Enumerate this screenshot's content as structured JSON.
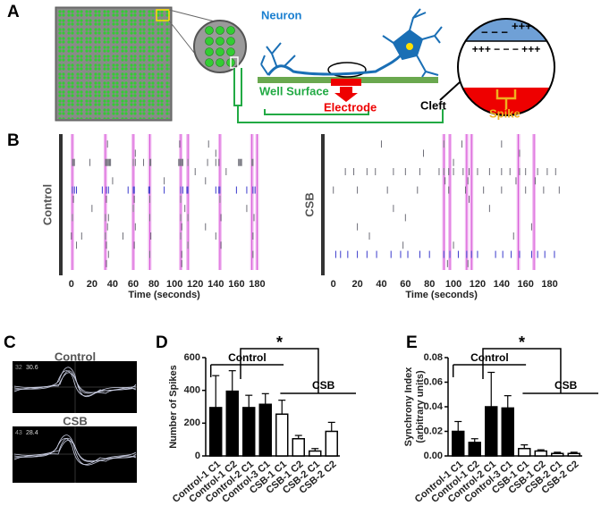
{
  "panel_labels": [
    "A",
    "B",
    "C",
    "D",
    "E"
  ],
  "diagram": {
    "neuron": "Neuron",
    "well_surface": "Well Surface",
    "electrode": "Electrode",
    "cleft": "Cleft",
    "spike": "Spike",
    "charge_top_plus": "+++",
    "charge_top_minus": "− − −",
    "charge_middle": "+++ − − − +++"
  },
  "waveforms": [
    {
      "label": "Control",
      "channel": "32",
      "reading": "30.6"
    },
    {
      "label": "CSB",
      "channel": "43",
      "reading": "28.4"
    }
  ],
  "chart_data": [
    {
      "type": "raster",
      "ylabel": "Control",
      "xlabel": "Time (seconds)",
      "xlim": [
        -5,
        190
      ],
      "xticks": [
        0,
        20,
        40,
        60,
        80,
        100,
        120,
        140,
        160,
        180
      ],
      "burst_color": "#e88ae8",
      "bursts": [
        1,
        33,
        60,
        76,
        106,
        113,
        144,
        175,
        180
      ],
      "rows": [
        {
          "color": "#6e6e78",
          "values": [
            35,
            105,
            133
          ]
        },
        {
          "color": "#6e6e78",
          "values": [
            62,
            140
          ]
        },
        {
          "color": "#6e6e78",
          "values": [
            1,
            2,
            3,
            18,
            33,
            34,
            35,
            36,
            37,
            38,
            60,
            62,
            70,
            76,
            77,
            104,
            105,
            106,
            107,
            108,
            113,
            132,
            140,
            143,
            162,
            163,
            164,
            165,
            175,
            176
          ]
        },
        {
          "color": "#6e6e78",
          "values": [
            120,
            150
          ]
        },
        {
          "color": "#6e6e78",
          "values": [
            40,
            90,
            130
          ]
        },
        {
          "color": "#3a3acc",
          "values": [
            1,
            3,
            5,
            30,
            34,
            36,
            55,
            60,
            61,
            75,
            76,
            90,
            106,
            108,
            112,
            113,
            140,
            143,
            144,
            160,
            170,
            176,
            178
          ]
        },
        {
          "color": "#6e6e78",
          "values": [
            2,
            34,
            61,
            76,
            106,
            144
          ]
        },
        {
          "color": "#6e6e78",
          "values": [
            20,
            60,
            110,
            170
          ]
        },
        {
          "color": "#6e6e78",
          "values": [
            1,
            33,
            36,
            76,
            106,
            113,
            145,
            177
          ]
        },
        {
          "color": "#6e6e78",
          "values": [
            35,
            62,
            107,
            130
          ]
        },
        {
          "color": "#6e6e78",
          "values": [
            0,
            10,
            33,
            50,
            77,
            106,
            140,
            176
          ]
        },
        {
          "color": "#6e6e78",
          "values": [
            5,
            34,
            61,
            113,
            145
          ]
        },
        {
          "color": "#6e6e78",
          "values": [
            36,
            76,
            107,
            176
          ]
        },
        {
          "color": "#6e6e78",
          "values": [
            34,
            107
          ]
        }
      ]
    },
    {
      "type": "raster",
      "ylabel": "CSB",
      "xlabel": "Time (seconds)",
      "xlim": [
        -5,
        190
      ],
      "xticks": [
        0,
        20,
        40,
        60,
        80,
        100,
        120,
        140,
        160,
        180
      ],
      "burst_color": "#e88ae8",
      "bursts": [
        92,
        97,
        111,
        115,
        154,
        167
      ],
      "rows": [
        {
          "color": "#6e6e78",
          "values": [
            40,
            92,
            107,
            140
          ]
        },
        {
          "color": "#6e6e78",
          "values": [
            75,
            155
          ]
        },
        {
          "color": "#6e6e78",
          "values": [
            100
          ]
        },
        {
          "color": "#6e6e78",
          "values": [
            10,
            17,
            28,
            35,
            50,
            60,
            72,
            88,
            92,
            96,
            100,
            108,
            113,
            120,
            130,
            140,
            147,
            155,
            160,
            170,
            178,
            185
          ]
        },
        {
          "color": "#6e6e78",
          "values": [
            93,
            112,
            152,
            168
          ]
        },
        {
          "color": "#6e6e78",
          "values": [
            0,
            20,
            45,
            70,
            96,
            110,
            125,
            140,
            160,
            175,
            188
          ]
        },
        {
          "color": "#6e6e78",
          "values": [
            113
          ]
        },
        {
          "color": "#6e6e78",
          "values": [
            50,
            130
          ]
        },
        {
          "color": "#6e6e78",
          "values": [
            60
          ]
        },
        {
          "color": "#6e6e78",
          "values": [
            20,
            165
          ]
        },
        {
          "color": "#6e6e78",
          "values": [
            30,
            150
          ]
        },
        {
          "color": "#6e6e78",
          "values": [
            58,
            100
          ]
        },
        {
          "color": "#3a3acc",
          "values": [
            2,
            6,
            12,
            20,
            28,
            36,
            48,
            56,
            62,
            72,
            80,
            92,
            97,
            104,
            111,
            115,
            120,
            135,
            141,
            148,
            155,
            165,
            170,
            176,
            184
          ]
        },
        {
          "color": "#6e6e78",
          "values": [
            95,
            112
          ]
        }
      ]
    },
    {
      "type": "bar",
      "ylabel": "Number of  Spikes",
      "categories": [
        "Control-1 C1",
        "Control-1 C2",
        "Control-2 C1",
        "Control-3 C1",
        "CSB-1 C1",
        "CSB-1 C2",
        "CSB-2 C1",
        "CSB-2 C2"
      ],
      "values": [
        295,
        395,
        295,
        315,
        255,
        105,
        30,
        150
      ],
      "errors": [
        195,
        125,
        75,
        65,
        85,
        20,
        15,
        55
      ],
      "colors": [
        "#000000",
        "#000000",
        "#000000",
        "#000000",
        "#ffffff",
        "#ffffff",
        "#ffffff",
        "#ffffff"
      ],
      "ylim": [
        0,
        600
      ],
      "yticks": [
        0,
        200,
        400,
        600
      ],
      "groups": [
        "Control",
        "CSB"
      ],
      "significance": "*"
    },
    {
      "type": "bar",
      "ylabel": [
        "Synchrony Index",
        "(arbitrary units)"
      ],
      "categories": [
        "Control-1 C1",
        "Control-1 C2",
        "Control-2 C1",
        "Control-3 C1",
        "CSB-1 C1",
        "CSB-1 C2",
        "CSB-2 C1",
        "CSB-2 C2"
      ],
      "values": [
        0.02,
        0.011,
        0.04,
        0.039,
        0.006,
        0.004,
        0.002,
        0.002
      ],
      "errors": [
        0.008,
        0.003,
        0.028,
        0.01,
        0.003,
        0.001,
        0.001,
        0.001
      ],
      "colors": [
        "#000000",
        "#000000",
        "#000000",
        "#000000",
        "#ffffff",
        "#ffffff",
        "#ffffff",
        "#ffffff"
      ],
      "ylim": [
        0,
        0.08
      ],
      "yticks": [
        {
          "value": 0,
          "label": "0.00"
        },
        {
          "value": 0.02,
          "label": "0.02"
        },
        {
          "value": 0.04,
          "label": "0.04"
        },
        {
          "value": 0.06,
          "label": "0.06"
        },
        {
          "value": 0.08,
          "label": "0.08"
        }
      ],
      "groups": [
        "Control",
        "CSB"
      ],
      "significance": "*"
    }
  ]
}
